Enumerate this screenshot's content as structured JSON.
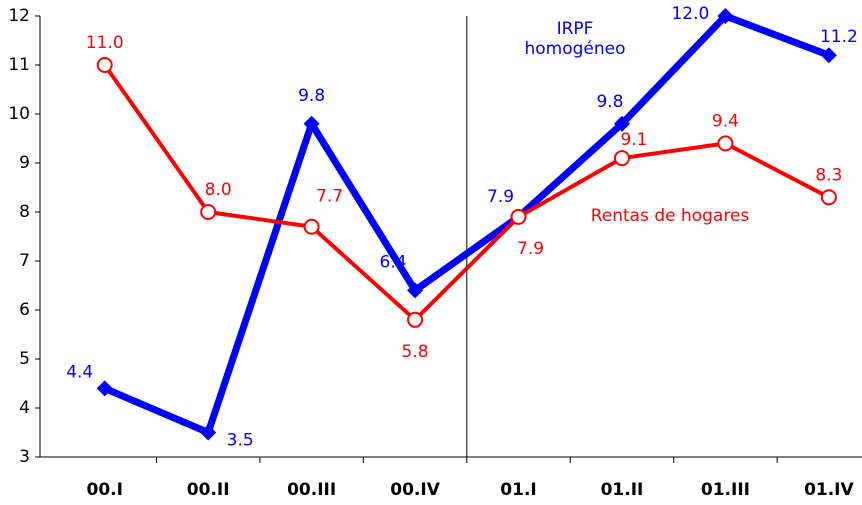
{
  "chart_data": {
    "type": "line",
    "categories": [
      "00.I",
      "00.II",
      "00.III",
      "00.IV",
      "01.I",
      "01.II",
      "01.III",
      "01.IV"
    ],
    "series": [
      {
        "name": "IRPF homogéneo",
        "color": "#0000ff",
        "marker": "diamond",
        "values": [
          4.4,
          3.5,
          9.8,
          6.4,
          7.9,
          9.8,
          12.0,
          11.2
        ],
        "value_labels": [
          "4.4",
          "3.5",
          "9.8",
          "6.4",
          "7.9",
          "9.8",
          "12.0",
          "11.2"
        ]
      },
      {
        "name": "Rentas de hogares",
        "color": "#ff0000",
        "marker": "circle",
        "values": [
          11.0,
          8.0,
          7.7,
          5.8,
          7.9,
          9.1,
          9.4,
          8.3
        ],
        "value_labels": [
          "11.0",
          "8.0",
          "7.7",
          "5.8",
          "7.9",
          "9.1",
          "9.4",
          "8.3"
        ]
      }
    ],
    "ylim": [
      3,
      12
    ],
    "yticks": [
      3,
      4,
      5,
      6,
      7,
      8,
      9,
      10,
      11,
      12
    ]
  }
}
